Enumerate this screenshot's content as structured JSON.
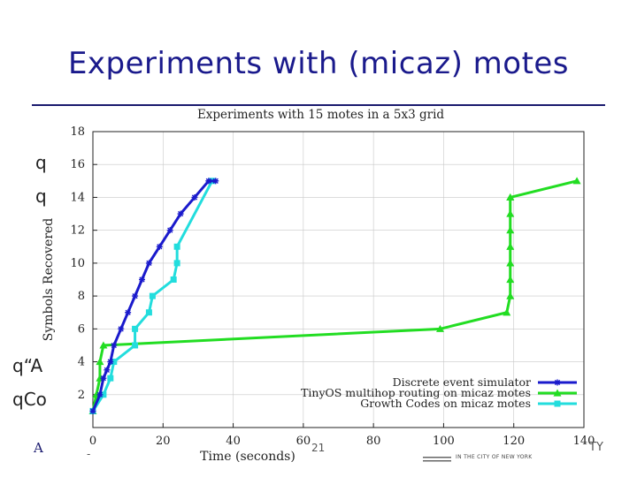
{
  "slide": {
    "title": "Experiments with (micaz) motes",
    "bullets": [
      "q",
      "q",
      "q“A",
      "qCo"
    ],
    "footer_left": "A",
    "footer_dash": "-",
    "footer_right": "TY",
    "page_number": "21",
    "footer_university": "IN THE CITY OF NEW YORK"
  },
  "colors": {
    "title": "#1a1a8c",
    "rule": "#1a1a6e",
    "grid": "#c8c8c8"
  },
  "chart_data": {
    "type": "line",
    "title": "Experiments with 15 motes in a 5x3 grid",
    "xlabel": "Time (seconds)",
    "ylabel": "Symbols Recovered",
    "xlim": [
      0,
      140
    ],
    "ylim": [
      0,
      18
    ],
    "xticks": [
      0,
      20,
      40,
      60,
      80,
      100,
      120,
      140
    ],
    "yticks": [
      2,
      4,
      6,
      8,
      10,
      12,
      14,
      16,
      18
    ],
    "grid": true,
    "legend_position": "bottom-right",
    "series": [
      {
        "name": "Discrete event simulator",
        "color": "#1a1acc",
        "marker": "star",
        "x": [
          0,
          2,
          3,
          4,
          5,
          6,
          8,
          10,
          12,
          14,
          16,
          19,
          22,
          25,
          29,
          33,
          35
        ],
        "y": [
          1,
          2,
          3,
          3.5,
          4,
          5,
          6,
          7,
          8,
          9,
          10,
          11,
          12,
          13,
          14,
          15,
          15
        ]
      },
      {
        "name": "TinyOS multihop routing on micaz motes",
        "color": "#22dd22",
        "marker": "triangle",
        "x": [
          0,
          1,
          2,
          2,
          3,
          99,
          118,
          119,
          119,
          119,
          119,
          119,
          119,
          119,
          119,
          138
        ],
        "y": [
          1,
          2,
          3,
          4,
          5,
          6,
          7,
          8,
          9,
          10,
          11,
          12,
          13,
          14,
          14,
          15
        ]
      },
      {
        "name": "Growth Codes on micaz motes",
        "color": "#22dddd",
        "marker": "square",
        "x": [
          0,
          3,
          5,
          6,
          12,
          12,
          16,
          17,
          23,
          24,
          24,
          34
        ],
        "y": [
          1,
          2,
          3,
          4,
          5,
          6,
          7,
          8,
          9,
          10,
          11,
          15
        ]
      }
    ]
  }
}
